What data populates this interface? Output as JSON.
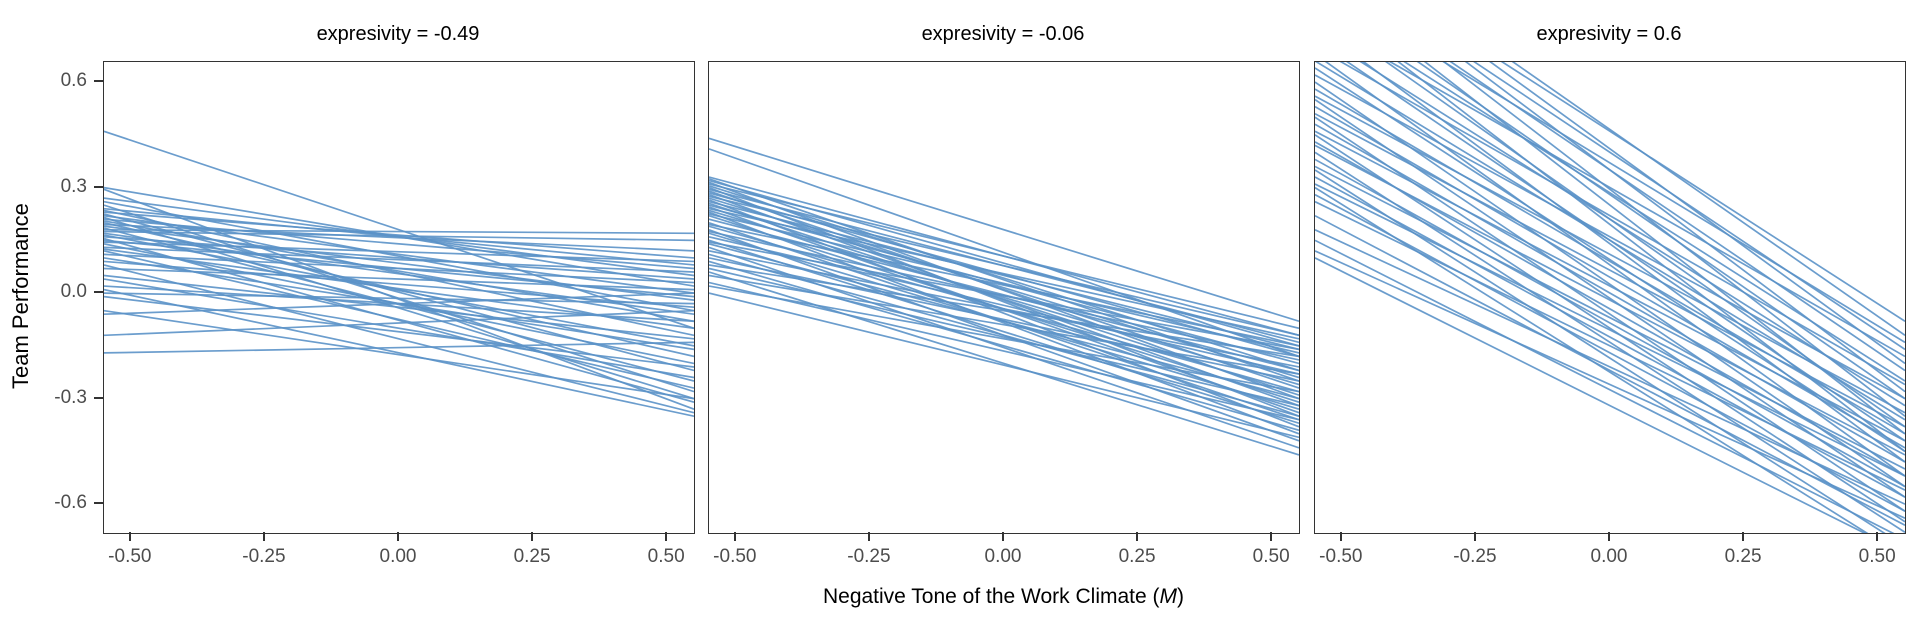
{
  "figure": {
    "y_axis_title": "Team Performance",
    "x_axis_title_prefix": "Negative Tone of the Work Climate (",
    "x_axis_title_italic": "M",
    "x_axis_title_suffix": ")"
  },
  "chart_data": {
    "type": "line",
    "title": "",
    "xlabel": "Negative Tone of the Work Climate (M)",
    "ylabel": "Team Performance",
    "facet_variable": "expresivity",
    "facet_values": [
      -0.49,
      -0.06,
      0.6
    ],
    "x_domain": [
      -0.55,
      0.55
    ],
    "y_domain": [
      -0.682,
      0.657
    ],
    "x_ticks": [
      -0.5,
      -0.25,
      0.0,
      0.25,
      0.5
    ],
    "x_tick_labels": [
      "-0.50",
      "-0.25",
      "0.00",
      "0.25",
      "0.50"
    ],
    "y_ticks": [
      0.6,
      0.3,
      0.0,
      -0.3,
      -0.6
    ],
    "y_tick_labels": [
      "0.6",
      "0.3",
      "0.0",
      "-0.3",
      "-0.6"
    ],
    "grid": "off",
    "legend": "none",
    "line_color": "#5b92c8",
    "axis_color": "#333333",
    "tick_text_color": "#4d4d4d",
    "lines_are": "per-team simple slopes of Team Performance on Negative Tone; each entry is [y at x=-0.55, y at x=0.55]",
    "facets": [
      {
        "title": "expresivity = -0.49",
        "lines": [
          [
            0.46,
            -0.1
          ],
          [
            0.3,
            0.02
          ],
          [
            0.295,
            -0.33
          ],
          [
            0.27,
            0.05
          ],
          [
            0.26,
            -0.05
          ],
          [
            0.25,
            -0.28
          ],
          [
            0.24,
            0.08
          ],
          [
            0.235,
            -0.12
          ],
          [
            0.23,
            0.1
          ],
          [
            0.225,
            -0.22
          ],
          [
            0.22,
            0.0
          ],
          [
            0.215,
            -0.3
          ],
          [
            0.21,
            0.07
          ],
          [
            0.205,
            -0.08
          ],
          [
            0.2,
            -0.18
          ],
          [
            0.195,
            0.12
          ],
          [
            0.19,
            -0.02
          ],
          [
            0.185,
            -0.25
          ],
          [
            0.18,
            0.17
          ],
          [
            0.175,
            0.15
          ],
          [
            0.17,
            -0.06
          ],
          [
            0.165,
            -0.15
          ],
          [
            0.16,
            0.04
          ],
          [
            0.155,
            -0.31
          ],
          [
            0.15,
            -0.01
          ],
          [
            0.145,
            0.09
          ],
          [
            0.14,
            -0.2
          ],
          [
            0.13,
            0.06
          ],
          [
            0.125,
            -0.1
          ],
          [
            0.12,
            -0.27
          ],
          [
            0.11,
            0.03
          ],
          [
            0.1,
            -0.16
          ],
          [
            0.09,
            -0.04
          ],
          [
            0.08,
            -0.34
          ],
          [
            0.07,
            0.01
          ],
          [
            0.05,
            -0.13
          ],
          [
            0.04,
            -0.24
          ],
          [
            0.02,
            -0.08
          ],
          [
            0.01,
            -0.35
          ],
          [
            0.0,
            -0.03
          ],
          [
            -0.01,
            -0.21
          ],
          [
            -0.05,
            -0.3
          ],
          [
            -0.06,
            0.0
          ],
          [
            -0.12,
            -0.05
          ],
          [
            -0.17,
            -0.14
          ]
        ]
      },
      {
        "title": "expresivity = -0.06",
        "lines": [
          [
            0.44,
            -0.08
          ],
          [
            0.41,
            -0.18
          ],
          [
            0.33,
            -0.12
          ],
          [
            0.325,
            -0.25
          ],
          [
            0.32,
            -0.15
          ],
          [
            0.315,
            -0.3
          ],
          [
            0.31,
            -0.1
          ],
          [
            0.305,
            -0.22
          ],
          [
            0.3,
            -0.35
          ],
          [
            0.295,
            -0.14
          ],
          [
            0.29,
            -0.27
          ],
          [
            0.285,
            -0.18
          ],
          [
            0.28,
            -0.32
          ],
          [
            0.275,
            -0.12
          ],
          [
            0.27,
            -0.24
          ],
          [
            0.265,
            -0.38
          ],
          [
            0.26,
            -0.16
          ],
          [
            0.255,
            -0.29
          ],
          [
            0.25,
            -0.2
          ],
          [
            0.245,
            -0.34
          ],
          [
            0.24,
            -0.13
          ],
          [
            0.235,
            -0.26
          ],
          [
            0.23,
            -0.4
          ],
          [
            0.225,
            -0.17
          ],
          [
            0.22,
            -0.31
          ],
          [
            0.21,
            -0.22
          ],
          [
            0.2,
            -0.36
          ],
          [
            0.195,
            -0.15
          ],
          [
            0.19,
            -0.28
          ],
          [
            0.18,
            -0.42
          ],
          [
            0.175,
            -0.19
          ],
          [
            0.17,
            -0.33
          ],
          [
            0.16,
            -0.23
          ],
          [
            0.15,
            -0.37
          ],
          [
            0.145,
            -0.16
          ],
          [
            0.14,
            -0.3
          ],
          [
            0.13,
            -0.44
          ],
          [
            0.12,
            -0.21
          ],
          [
            0.11,
            -0.35
          ],
          [
            0.1,
            -0.25
          ],
          [
            0.09,
            -0.39
          ],
          [
            0.08,
            -0.18
          ],
          [
            0.07,
            -0.32
          ],
          [
            0.06,
            -0.46
          ],
          [
            0.05,
            -0.23
          ],
          [
            0.03,
            -0.36
          ],
          [
            0.02,
            -0.28
          ],
          [
            0.0,
            -0.41
          ]
        ]
      },
      {
        "title": "expresivity = 0.6",
        "lines": [
          [
            1.05,
            -0.12
          ],
          [
            1.02,
            -0.2
          ],
          [
            1.0,
            -0.08
          ],
          [
            0.98,
            -0.28
          ],
          [
            0.96,
            -0.16
          ],
          [
            0.94,
            -0.35
          ],
          [
            0.92,
            -0.22
          ],
          [
            0.9,
            -0.4
          ],
          [
            0.88,
            -0.14
          ],
          [
            0.86,
            -0.3
          ],
          [
            0.84,
            -0.45
          ],
          [
            0.82,
            -0.25
          ],
          [
            0.8,
            -0.38
          ],
          [
            0.78,
            -0.18
          ],
          [
            0.76,
            -0.48
          ],
          [
            0.74,
            -0.32
          ],
          [
            0.72,
            -0.42
          ],
          [
            0.7,
            -0.26
          ],
          [
            0.68,
            -0.52
          ],
          [
            0.66,
            -0.36
          ],
          [
            0.64,
            -0.45
          ],
          [
            0.62,
            -0.3
          ],
          [
            0.6,
            -0.55
          ],
          [
            0.58,
            -0.4
          ],
          [
            0.56,
            -0.34
          ],
          [
            0.55,
            -0.58
          ],
          [
            0.53,
            -0.44
          ],
          [
            0.51,
            -0.38
          ],
          [
            0.5,
            -0.62
          ],
          [
            0.48,
            -0.48
          ],
          [
            0.46,
            -0.42
          ],
          [
            0.45,
            -0.65
          ],
          [
            0.43,
            -0.52
          ],
          [
            0.42,
            -0.46
          ],
          [
            0.4,
            -0.68
          ],
          [
            0.38,
            -0.55
          ],
          [
            0.36,
            -0.5
          ],
          [
            0.35,
            -0.72
          ],
          [
            0.33,
            -0.58
          ],
          [
            0.31,
            -0.52
          ],
          [
            0.3,
            -0.75
          ],
          [
            0.28,
            -0.62
          ],
          [
            0.26,
            -0.56
          ],
          [
            0.22,
            -0.66
          ],
          [
            0.18,
            -0.6
          ],
          [
            0.15,
            -0.7
          ],
          [
            0.12,
            -0.64
          ],
          [
            0.1,
            -0.74
          ]
        ]
      }
    ]
  }
}
